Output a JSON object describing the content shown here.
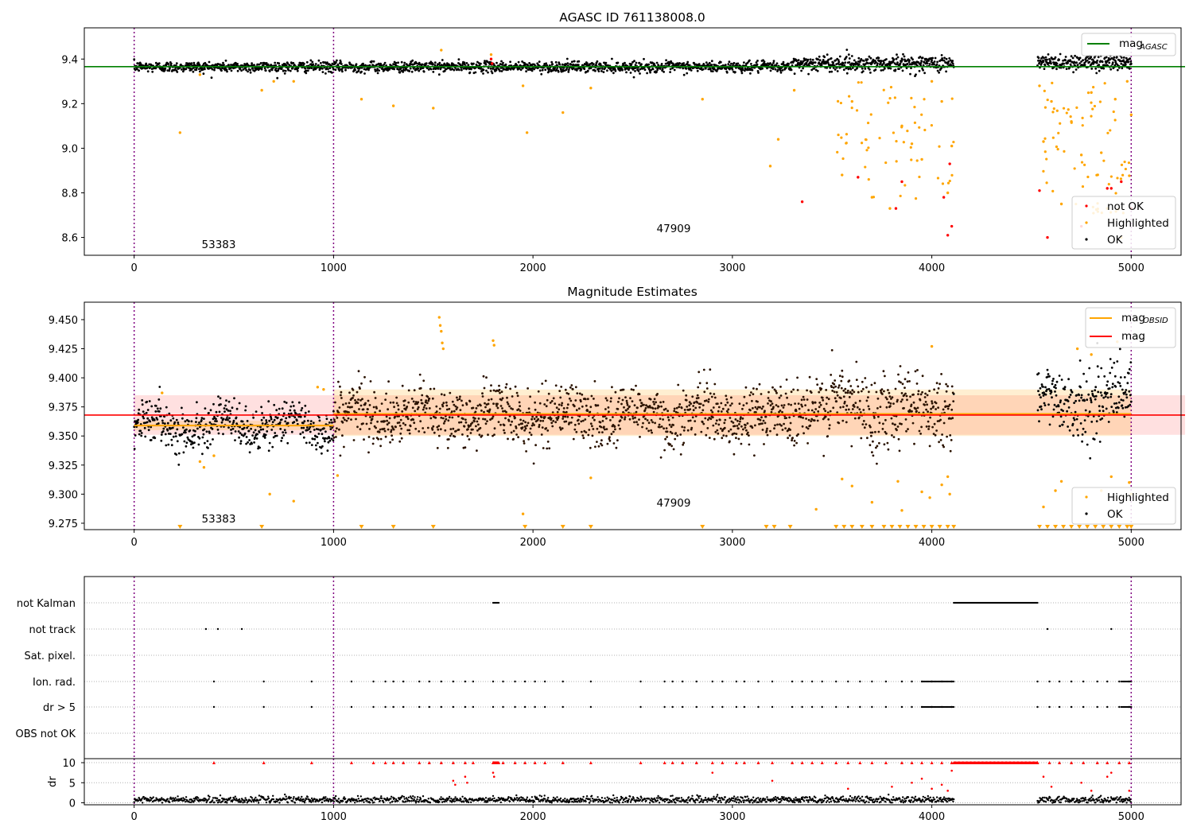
{
  "chart_data": [
    {
      "type": "scatter",
      "title": "AGASC ID 761138008.0",
      "xlim": [
        -250,
        5250
      ],
      "ylim": [
        8.52,
        9.54
      ],
      "x_ticks": [
        "0",
        "1000",
        "2000",
        "3000",
        "4000",
        "5000"
      ],
      "y_ticks": [
        "8.6",
        "8.8",
        "9.0",
        "9.2",
        "9.4"
      ],
      "obsid_boundaries": [
        0,
        1000,
        5000
      ],
      "obsid_labels": [
        "53383",
        "47909"
      ],
      "mag_agasc": 9.366,
      "legend_top": {
        "line": "mag",
        "subscript": "AGASC"
      },
      "legend_bottom": [
        "not OK",
        "Highlighted",
        "OK"
      ],
      "series": [
        {
          "name": "OK",
          "color": "#000000",
          "mean": 9.365,
          "spread": 0.012
        },
        {
          "name": "Highlighted",
          "color": "#ffa500"
        },
        {
          "name": "not OK",
          "color": "#ff0000"
        }
      ],
      "highlighted_points": [
        [
          230,
          9.07
        ],
        [
          330,
          9.33
        ],
        [
          640,
          9.26
        ],
        [
          700,
          9.3
        ],
        [
          800,
          9.3
        ],
        [
          1140,
          9.22
        ],
        [
          1300,
          9.19
        ],
        [
          1500,
          9.18
        ],
        [
          1540,
          9.44
        ],
        [
          1790,
          9.42
        ],
        [
          1950,
          9.28
        ],
        [
          1970,
          9.07
        ],
        [
          2150,
          9.16
        ],
        [
          2290,
          9.27
        ],
        [
          2850,
          9.22
        ],
        [
          3190,
          8.92
        ],
        [
          3230,
          9.04
        ],
        [
          3310,
          9.26
        ],
        [
          3550,
          8.88
        ],
        [
          3600,
          9.21
        ],
        [
          3700,
          8.78
        ],
        [
          3790,
          8.73
        ],
        [
          3850,
          9.1
        ],
        [
          3900,
          9.02
        ],
        [
          3950,
          8.95
        ],
        [
          4000,
          9.3
        ],
        [
          4050,
          9.21
        ],
        [
          4080,
          8.8
        ],
        [
          4100,
          9.01
        ],
        [
          4540,
          9.28
        ],
        [
          4560,
          9.03
        ],
        [
          4600,
          9.21
        ],
        [
          4650,
          8.75
        ],
        [
          4700,
          9.12
        ],
        [
          4750,
          8.97
        ],
        [
          4800,
          9.25
        ],
        [
          4850,
          8.98
        ],
        [
          4880,
          8.73
        ],
        [
          4920,
          9.22
        ],
        [
          4950,
          8.6
        ],
        [
          4980,
          9.3
        ],
        [
          5000,
          9.15
        ]
      ],
      "not_ok_points": [
        [
          1790,
          9.4
        ],
        [
          1795,
          9.38
        ],
        [
          3350,
          8.76
        ],
        [
          3630,
          8.87
        ],
        [
          3820,
          8.73
        ],
        [
          3850,
          8.85
        ],
        [
          4060,
          8.78
        ],
        [
          4080,
          8.61
        ],
        [
          4090,
          8.93
        ],
        [
          4100,
          8.65
        ],
        [
          4540,
          8.81
        ],
        [
          4580,
          8.6
        ],
        [
          4750,
          8.65
        ],
        [
          4880,
          8.82
        ],
        [
          4900,
          8.82
        ],
        [
          4950,
          8.85
        ],
        [
          5000,
          8.73
        ]
      ]
    },
    {
      "type": "scatter",
      "title": "Magnitude Estimates",
      "xlim": [
        -250,
        5250
      ],
      "ylim": [
        9.2695,
        9.465
      ],
      "x_ticks": [
        "0",
        "1000",
        "2000",
        "3000",
        "4000",
        "5000"
      ],
      "y_ticks": [
        "9.275",
        "9.300",
        "9.325",
        "9.350",
        "9.375",
        "9.400",
        "9.425",
        "9.450"
      ],
      "obsid_labels": [
        "53383",
        "47909"
      ],
      "mag": 9.368,
      "mag_band": [
        9.351,
        9.385
      ],
      "mag_obsid": [
        {
          "x": [
            0,
            1000
          ],
          "value": 9.359,
          "band": [
            9.355,
            9.363
          ]
        },
        {
          "x": [
            1000,
            5000
          ],
          "value": 9.369,
          "band": [
            9.35,
            9.39
          ]
        }
      ],
      "legend_top": [
        {
          "line": "mag",
          "subscript": "OBSID"
        },
        {
          "line": "mag"
        }
      ],
      "legend_bottom": [
        "Highlighted",
        "OK"
      ],
      "highlighted_points": [
        [
          140,
          9.387
        ],
        [
          330,
          9.328
        ],
        [
          350,
          9.323
        ],
        [
          400,
          9.333
        ],
        [
          680,
          9.3
        ],
        [
          800,
          9.294
        ],
        [
          920,
          9.392
        ],
        [
          950,
          9.39
        ],
        [
          1020,
          9.316
        ],
        [
          1530,
          9.452
        ],
        [
          1535,
          9.445
        ],
        [
          1540,
          9.44
        ],
        [
          1545,
          9.43
        ],
        [
          1550,
          9.425
        ],
        [
          1800,
          9.432
        ],
        [
          1805,
          9.428
        ],
        [
          1950,
          9.283
        ],
        [
          2290,
          9.314
        ],
        [
          3420,
          9.287
        ],
        [
          3550,
          9.313
        ],
        [
          3600,
          9.307
        ],
        [
          3700,
          9.293
        ],
        [
          3830,
          9.311
        ],
        [
          3850,
          9.286
        ],
        [
          3950,
          9.302
        ],
        [
          3990,
          9.297
        ],
        [
          4000,
          9.427
        ],
        [
          4050,
          9.308
        ],
        [
          4080,
          9.315
        ],
        [
          4090,
          9.3
        ],
        [
          4560,
          9.289
        ],
        [
          4620,
          9.303
        ],
        [
          4650,
          9.311
        ],
        [
          4730,
          9.425
        ],
        [
          4800,
          9.42
        ],
        [
          4850,
          9.303
        ],
        [
          4900,
          9.315
        ],
        [
          4930,
          9.431
        ],
        [
          4990,
          9.31
        ],
        [
          5000,
          9.3
        ]
      ],
      "floor_markers": [
        230,
        640,
        1140,
        1300,
        1500,
        1960,
        2150,
        2290,
        2850,
        3170,
        3210,
        3290,
        3520,
        3560,
        3600,
        3650,
        3700,
        3760,
        3800,
        3840,
        3880,
        3920,
        3960,
        4000,
        4040,
        4080,
        4110,
        4540,
        4580,
        4620,
        4660,
        4700,
        4740,
        4780,
        4820,
        4860,
        4900,
        4940,
        4980,
        5000
      ]
    },
    {
      "type": "scatter",
      "flags": [
        "not Kalman",
        "not track",
        "Sat. pixel.",
        "Ion. rad.",
        "dr > 5",
        "OBS not OK"
      ],
      "flag_points": {
        "not Kalman": [
          [
            1800,
            1830
          ],
          [
            4110,
            4530
          ]
        ],
        "not track": [
          360,
          420,
          540,
          4580,
          4900
        ],
        "Sat. pixel.": [],
        "Ion. rad.": [
          400,
          650,
          890,
          1090,
          1200,
          1260,
          1300,
          1350,
          1430,
          1480,
          1540,
          1600,
          1660,
          1700,
          1800,
          1850,
          1910,
          1960,
          2010,
          2060,
          2150,
          2290,
          2540,
          2660,
          2700,
          2750,
          2820,
          2900,
          2950,
          3020,
          3060,
          3130,
          3200,
          3300,
          3350,
          3400,
          3450,
          3520,
          3580,
          3640,
          3700,
          3770,
          3850,
          3900,
          3950,
          4000,
          4050,
          4100,
          4530,
          4590,
          4640,
          4700,
          4760,
          4830,
          4880,
          4940,
          4990
        ],
        "dr > 5": [
          400,
          650,
          890,
          1090,
          1200,
          1260,
          1300,
          1350,
          1430,
          1480,
          1540,
          1600,
          1660,
          1700,
          1800,
          1850,
          1910,
          1960,
          2010,
          2060,
          2150,
          2290,
          2540,
          2660,
          2700,
          2750,
          2820,
          2900,
          2950,
          3020,
          3060,
          3130,
          3200,
          3300,
          3350,
          3400,
          3450,
          3520,
          3580,
          3640,
          3700,
          3770,
          3850,
          3900,
          3950,
          4000,
          4050,
          4100,
          4530,
          4590,
          4640,
          4700,
          4760,
          4830,
          4880,
          4940,
          4990
        ],
        "OBS not OK": []
      },
      "dr_ylabel": "dr",
      "dr_yticks": [
        "0",
        "5",
        "10"
      ],
      "x_ticks": [
        "0",
        "1000",
        "2000",
        "3000",
        "4000",
        "5000"
      ],
      "xlim": [
        -250,
        5250
      ]
    }
  ],
  "colors": {
    "ok": "#000000",
    "highlighted": "#ffa500",
    "not_ok": "#ff0000",
    "agasc_line": "#008000",
    "obsid_line": "#ffa500",
    "mag_line": "#ff0000",
    "boundary": "#800080"
  }
}
